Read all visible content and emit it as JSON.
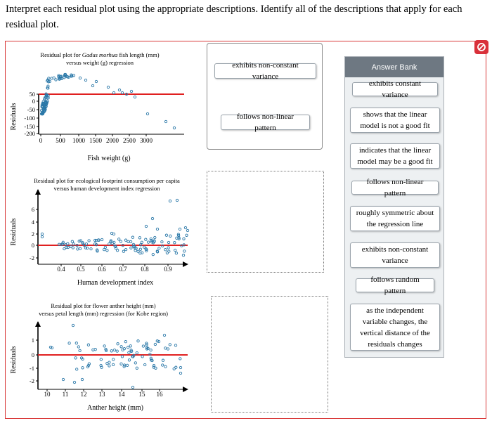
{
  "instructions": "Interpret each residual plot using the appropriate descriptions. Identify all of the descriptions that apply for each residual plot.",
  "colors": {
    "frame": "#d93a3a",
    "zero_line": "#e02020",
    "point": "#2a78a8",
    "bank_header": "#6e7882",
    "bank_bg": "#edf0f2"
  },
  "close_icon": "close-circle-slash-icon",
  "plots": [
    {
      "title_line1_prefix": "Residual plot for ",
      "title_line1_italic": "Gadus morhua",
      "title_line1_suffix": " fish length (mm)",
      "title_line2": "versus weight (g) regression",
      "ylabel": "Residuals",
      "xlabel": "Fish weight (g)",
      "xticks": [
        "0",
        "500",
        "1000",
        "1500",
        "2000",
        "2500",
        "3000"
      ],
      "yticks": [
        "50",
        "0",
        "-50",
        "-100",
        "-150",
        "-200"
      ]
    },
    {
      "title_line1": "Residual plot for ecological footprint consumption per capita",
      "title_line2": "versus human development index regression",
      "ylabel": "Residuals",
      "xlabel": "Human development index",
      "xticks": [
        "0.4",
        "0.5",
        "0.6",
        "0.7",
        "0.8",
        "0.9"
      ],
      "yticks": [
        "6",
        "4",
        "2",
        "0",
        "-2"
      ]
    },
    {
      "title_line1": "Residual plot for flower anther height (mm)",
      "title_line2": "versus petal length (mm) regression (for Kobe region)",
      "ylabel": "Residuals",
      "xlabel": "Anther height (mm)",
      "xticks": [
        "10",
        "11",
        "12",
        "13",
        "14",
        "15",
        "16"
      ],
      "yticks": [
        "1",
        "0",
        "-1",
        "-2"
      ]
    }
  ],
  "placed": [
    {
      "text": "exhibits non-constant variance"
    },
    {
      "text": "follows non-linear pattern"
    }
  ],
  "bank": {
    "header": "Answer Bank",
    "items": [
      {
        "text": "exhibits constant variance"
      },
      {
        "text": "shows that the linear model is not a good fit"
      },
      {
        "text": "indicates that the linear model may be a good fit"
      },
      {
        "text": "follows non-linear pattern"
      },
      {
        "text": "roughly symmetric about the regression line"
      },
      {
        "text": "exhibits non-constant variance"
      },
      {
        "text": "follows random pattern"
      },
      {
        "text": "as the independent variable changes, the vertical distance of the residuals changes"
      }
    ]
  }
}
